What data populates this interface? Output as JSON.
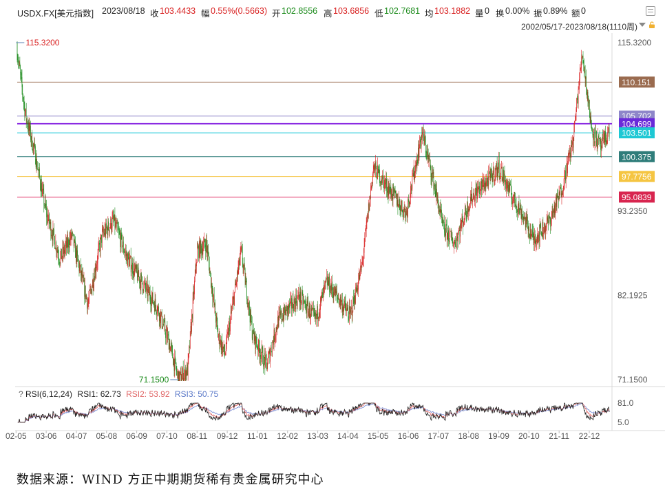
{
  "header": {
    "symbol": "USDX.FX[美元指数]",
    "date": "2023/08/18",
    "close_label": "收",
    "close_value": "103.4433",
    "change_label": "幅",
    "change_value": "0.55%(0.5663)",
    "open_label": "开",
    "open_value": "102.8556",
    "high_label": "高",
    "high_value": "103.6856",
    "low_label": "低",
    "low_value": "102.7681",
    "avg_label": "均",
    "avg_value": "103.1882",
    "volume_label": "量",
    "volume_value": "0",
    "turnover_label": "换",
    "turnover_value": "0.00%",
    "amplitude_label": "振",
    "amplitude_value": "0.89%",
    "amount_label": "额",
    "amount_value": "0",
    "range": "2002/05/17-2023/08/18(1110周)"
  },
  "rsi": {
    "label": "RSI(6,12,24)",
    "rsi1": "RSI1: 62.73",
    "rsi2": "RSI2: 53.92",
    "rsi3": "RSI3: 50.75",
    "axis_top": "81.0",
    "axis_bottom": "5.0"
  },
  "footer": {
    "source": "数据来源：WIND 方正中期期货稀有贵金属研究中心"
  },
  "colors": {
    "up": "#d81e1e",
    "down": "#1a8a1a",
    "rsi1": "#222222",
    "rsi2": "#e06666",
    "rsi3": "#7a8fd6"
  },
  "chart_data": {
    "type": "candlestick",
    "title": "USDX.FX[美元指数]",
    "y_ticks": [
      "115.3200",
      "93.2350",
      "82.1925",
      "71.1500"
    ],
    "ylim": [
      71.15,
      115.32
    ],
    "x_ticks": [
      "02-05",
      "03-06",
      "04-07",
      "05-08",
      "06-09",
      "07-10",
      "08-11",
      "09-12",
      "11-01",
      "12-02",
      "13-03",
      "14-04",
      "15-05",
      "16-06",
      "17-07",
      "18-08",
      "19-09",
      "20-10",
      "21-11",
      "22-12"
    ],
    "annotations": [
      {
        "label": "115.3200",
        "value": 115.32,
        "at": "2002-05"
      },
      {
        "label": "71.1500",
        "value": 71.15,
        "at": "2008-03"
      }
    ],
    "horizontal_lines": [
      {
        "label": "110.151",
        "value": 110.151,
        "color": "#9a6b4f",
        "label_bg": "#9a6b4f"
      },
      {
        "label": "105.702",
        "value": 105.702,
        "color": "#8e86c9",
        "label_bg": "#8e86c9"
      },
      {
        "label": "104.699",
        "value": 104.699,
        "color": "#8a2be2",
        "label_bg": "#6a2bd9"
      },
      {
        "label": "103.501",
        "value": 103.501,
        "color": "#19c9d6",
        "label_bg": "#1ec8d4"
      },
      {
        "label": "100.375",
        "value": 100.375,
        "color": "#2f7d7a",
        "label_bg": "#2f7d7a"
      },
      {
        "label": "97.7756",
        "value": 97.7756,
        "color": "#f5c542",
        "label_bg": "#f5c542"
      },
      {
        "label": "95.0839",
        "value": 95.0839,
        "color": "#e0245e",
        "label_bg": "#d8254f"
      }
    ],
    "series": [
      {
        "name": "USDX.FX",
        "x": [
          "2002-05",
          "2002-09",
          "2003-01",
          "2003-06",
          "2003-12",
          "2004-05",
          "2004-12",
          "2005-06",
          "2005-11",
          "2006-05",
          "2006-11",
          "2007-06",
          "2007-11",
          "2008-03",
          "2008-07",
          "2008-11",
          "2009-03",
          "2009-08",
          "2009-11",
          "2010-06",
          "2010-11",
          "2011-05",
          "2011-10",
          "2012-07",
          "2013-02",
          "2013-07",
          "2014-05",
          "2014-10",
          "2015-03",
          "2015-10",
          "2016-05",
          "2016-12",
          "2017-05",
          "2017-09",
          "2018-02",
          "2018-09",
          "2019-05",
          "2019-09",
          "2020-03",
          "2020-07",
          "2020-12",
          "2021-07",
          "2021-12",
          "2022-05",
          "2022-09",
          "2023-01",
          "2023-05",
          "2023-08"
        ],
        "values": [
          115.32,
          106.0,
          101.0,
          93.0,
          87.0,
          90.0,
          81.0,
          90.0,
          92.0,
          87.0,
          84.0,
          80.5,
          76.0,
          71.15,
          72.5,
          88.0,
          89.0,
          77.0,
          74.5,
          88.0,
          77.0,
          73.0,
          79.0,
          82.0,
          79.0,
          84.0,
          79.5,
          86.0,
          99.0,
          96.0,
          93.0,
          103.5,
          97.0,
          91.0,
          89.0,
          95.0,
          97.5,
          99.0,
          95.0,
          93.0,
          89.5,
          92.0,
          96.0,
          102.5,
          114.1,
          104.0,
          101.5,
          103.44
        ]
      }
    ],
    "rsi_series": [
      {
        "name": "RSI1",
        "last": 62.73
      },
      {
        "name": "RSI2",
        "last": 53.92
      },
      {
        "name": "RSI3",
        "last": 50.75
      }
    ]
  }
}
